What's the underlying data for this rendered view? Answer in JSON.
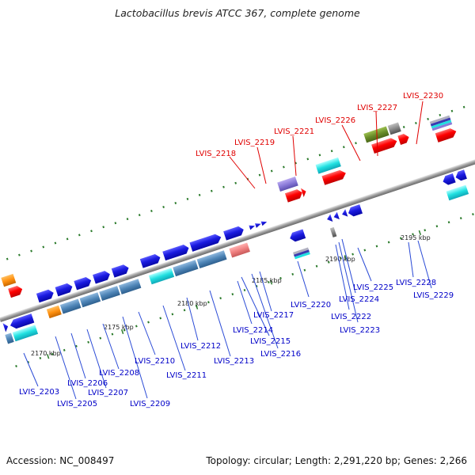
{
  "title": "Lactobacillus brevis ATCC 367, complete genome",
  "footer": {
    "accession": "Accession: NC_008497",
    "summary": "Topology: circular; Length: 2,291,220 bp; Genes: 2,266"
  },
  "ticks": [
    "2170 kbp",
    "2175 kbp",
    "2180 kbp",
    "2185 kbp",
    "2190 kbp",
    "2195 kbp"
  ],
  "labels_above": [
    "LVIS_2218",
    "LVIS_2219",
    "LVIS_2221",
    "LVIS_2226",
    "LVIS_2227",
    "LVIS_2230"
  ],
  "labels_below": [
    "LVIS_2203",
    "LVIS_2205",
    "LVIS_2206",
    "LVIS_2207",
    "LVIS_2208",
    "LVIS_2209",
    "LVIS_2210",
    "LVIS_2211",
    "LVIS_2212",
    "LVIS_2213",
    "LVIS_2214",
    "LVIS_2215",
    "LVIS_2216",
    "LVIS_2217",
    "LVIS_2220",
    "LVIS_2222",
    "LVIS_2223",
    "LVIS_2224",
    "LVIS_2225",
    "LVIS_2228",
    "LVIS_2229"
  ],
  "colors": {
    "cds": "#1a1ae0",
    "rna": "#ff0000",
    "cyan": "#20e0e0",
    "steel": "#4f86b8",
    "orange": "#ff9010",
    "olive": "#6a8e2a",
    "purple": "#8a7ad8",
    "pink": "#f08080",
    "grey": "#888888",
    "backbone": "#999999",
    "dots": "#2a7a2a"
  }
}
